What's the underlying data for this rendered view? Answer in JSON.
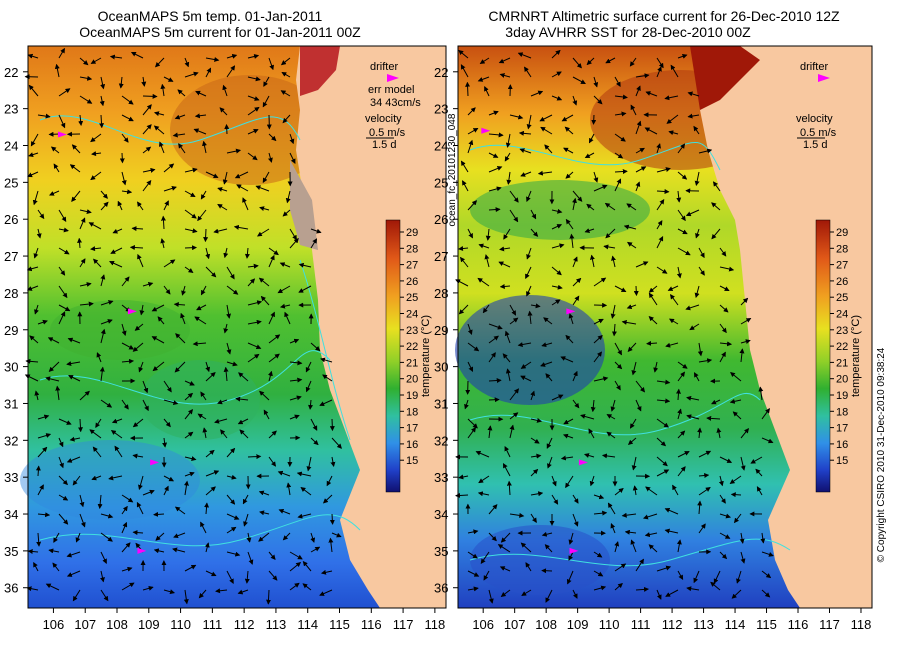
{
  "left_panel": {
    "title_line1": "OceanMAPS 5m temp. 01-Jan-2011",
    "title_line2": "OceanMAPS 5m current for 01-Jan-2011 00Z",
    "legend": {
      "drifter_label": "drifter",
      "model_label": "err model",
      "model_value": "34 43cm/s",
      "velocity_label": "velocity",
      "velocity_scale": "0.5 m/s",
      "time_scale": "1.5 d"
    },
    "colorbar": {
      "label": "temperature (°C)",
      "ticks": [
        "29",
        "28",
        "27",
        "26",
        "25",
        "24",
        "23",
        "22",
        "21",
        "20",
        "19",
        "18",
        "17",
        "16",
        "15"
      ]
    }
  },
  "right_panel": {
    "title_line1": "CMRNRT Altimetric surface current for 26-Dec-2010 12Z",
    "title_line2": "3day AVHRR SST for 28-Dec-2010 00Z",
    "legend": {
      "drifter_label": "drifter",
      "velocity_label": "velocity",
      "velocity_scale": "0.5 m/s",
      "time_scale": "1.5 d"
    },
    "colorbar": {
      "label": "temperature (°C)",
      "ticks": [
        "29",
        "28",
        "27",
        "26",
        "25",
        "24",
        "23",
        "22",
        "21",
        "20",
        "19",
        "18",
        "17",
        "16",
        "15"
      ]
    }
  },
  "axes": {
    "lat_ticks": [
      "22",
      "23",
      "24",
      "25",
      "26",
      "27",
      "28",
      "29",
      "30",
      "31",
      "32",
      "33",
      "34",
      "35",
      "36"
    ],
    "lon_ticks": [
      "106",
      "107",
      "108",
      "109",
      "110",
      "111",
      "112",
      "113",
      "114",
      "115",
      "116",
      "117",
      "118"
    ]
  },
  "side_text": {
    "file_id": "ocean_fc_20101230_048",
    "copyright": "© Copyright CSIRO 2010   31-Dec-2010 09:38:24"
  },
  "colors": {
    "land": "#f8c8a0",
    "hot": "#a02810",
    "warm": "#f0a020",
    "mid": "#e8e020",
    "green": "#30b030",
    "cool": "#20b8b0",
    "blue": "#3070e8",
    "deep": "#101880",
    "drifter": "#ff00ff",
    "contour": "#40e0e0"
  },
  "drifters_left": [
    {
      "lon": 106.3,
      "lat": 23.7
    },
    {
      "lon": 108.5,
      "lat": 28.5
    },
    {
      "lon": 109.2,
      "lat": 32.6
    },
    {
      "lon": 108.8,
      "lat": 35.0
    }
  ],
  "drifters_right": [
    {
      "lon": 106.1,
      "lat": 23.6
    },
    {
      "lon": 108.8,
      "lat": 28.5
    },
    {
      "lon": 109.2,
      "lat": 32.6
    },
    {
      "lon": 108.9,
      "lat": 35.0
    }
  ]
}
